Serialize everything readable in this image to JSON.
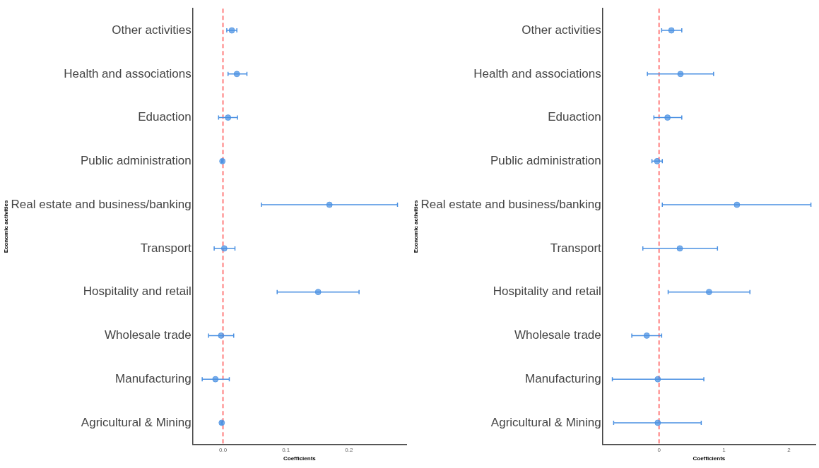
{
  "chart_data": [
    {
      "type": "scatter",
      "orientation": "horizontal",
      "xlabel": "Coefficients",
      "ylabel": "Economic activities",
      "categories": [
        "Other activities",
        "Health and associations",
        "Eduaction",
        "Public administration",
        "Real estate and business/banking",
        "Transport",
        "Hospitality and retail",
        "Wholesale trade",
        "Manufacturing",
        "Agricultural & Mining"
      ],
      "values": [
        0.014,
        0.022,
        0.008,
        -0.001,
        0.169,
        0.002,
        0.151,
        -0.003,
        -0.012,
        -0.002
      ],
      "errors": [
        [
          0.006,
          0.022
        ],
        [
          0.008,
          0.038
        ],
        [
          -0.007,
          0.023
        ],
        [
          -0.002,
          0.0
        ],
        [
          0.061,
          0.277
        ],
        [
          -0.014,
          0.019
        ],
        [
          0.086,
          0.216
        ],
        [
          -0.023,
          0.017
        ],
        [
          -0.033,
          0.01
        ],
        [
          -0.003,
          -0.001
        ]
      ],
      "color": "#4a90e2",
      "marker": "circle",
      "xlim": [
        -0.048,
        0.291
      ],
      "xticks": [
        {
          "value": 0,
          "label": "0.0"
        },
        0.1,
        0.2
      ],
      "ref_lines": [
        {
          "axis": "x",
          "value": 0,
          "color": "#ff4d4d",
          "line_style": "dashed"
        }
      ],
      "grid": false,
      "legend": false
    },
    {
      "type": "scatter",
      "orientation": "horizontal",
      "xlabel": "Coefficients",
      "ylabel": "Economic activities",
      "categories": [
        "Other activities",
        "Health and associations",
        "Eduaction",
        "Public administration",
        "Real estate and business/banking",
        "Transport",
        "Hospitality and retail",
        "Wholesale trade",
        "Manufacturing",
        "Agricultural & Mining"
      ],
      "values": [
        0.19,
        0.33,
        0.13,
        -0.03,
        1.2,
        0.32,
        0.77,
        -0.19,
        -0.02,
        -0.02
      ],
      "errors": [
        [
          0.04,
          0.35
        ],
        [
          -0.18,
          0.84
        ],
        [
          -0.08,
          0.35
        ],
        [
          -0.11,
          0.05
        ],
        [
          0.05,
          2.34
        ],
        [
          -0.25,
          0.9
        ],
        [
          0.14,
          1.4
        ],
        [
          -0.42,
          0.04
        ],
        [
          -0.72,
          0.69
        ],
        [
          -0.7,
          0.65
        ]
      ],
      "color": "#4a90e2",
      "marker": "circle",
      "xlim": [
        -0.87,
        2.41
      ],
      "xticks": [
        0,
        1,
        2
      ],
      "ref_lines": [
        {
          "axis": "x",
          "value": 0,
          "color": "#ff4d4d",
          "line_style": "dashed"
        }
      ],
      "grid": false,
      "legend": false
    }
  ]
}
